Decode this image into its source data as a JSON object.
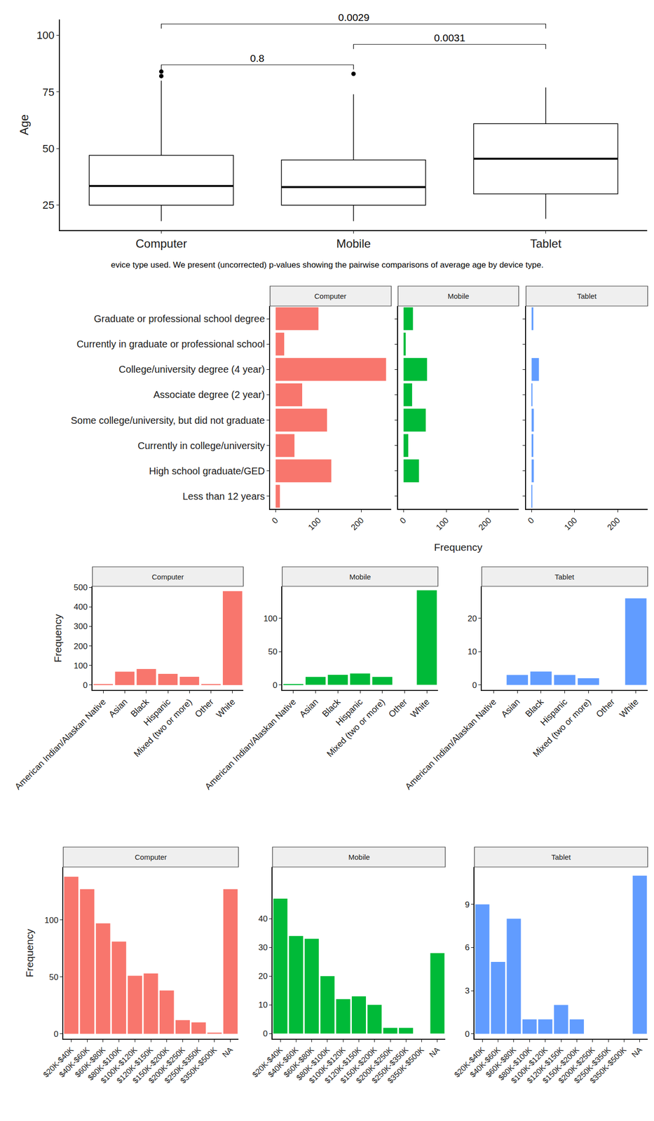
{
  "chart_data": [
    {
      "type": "box",
      "categories": [
        "Computer",
        "Mobile",
        "Tablet"
      ],
      "y_label": "Age",
      "ylim": [
        14,
        107
      ],
      "yticks": [
        25,
        50,
        75,
        100
      ],
      "boxes": [
        {
          "lower": 18,
          "q1": 25,
          "median": 33.5,
          "q3": 47,
          "upper": 80,
          "outliers": [
            82,
            84
          ]
        },
        {
          "lower": 18,
          "q1": 25,
          "median": 33,
          "q3": 45,
          "upper": 74,
          "outliers": [
            83
          ]
        },
        {
          "lower": 19,
          "q1": 30,
          "median": 45.5,
          "q3": 61,
          "upper": 77,
          "outliers": []
        }
      ],
      "comparisons": [
        {
          "groups": [
            "Computer",
            "Mobile"
          ],
          "p": 0.8
        },
        {
          "groups": [
            "Mobile",
            "Tablet"
          ],
          "p": 0.0031
        },
        {
          "groups": [
            "Computer",
            "Tablet"
          ],
          "p": 0.0029
        }
      ],
      "caption": "evice type used. We present (uncorrected) p-values showing the pairwise comparisons of average age by device type."
    },
    {
      "type": "bar",
      "orientation": "horizontal",
      "categories": [
        "Graduate or professional school degree",
        "Currently in graduate or professional school",
        "College/university degree (4 year)",
        "Associate degree (2 year)",
        "Some college/university, but did not graduate",
        "Currently in college/university",
        "High school graduate/GED",
        "Less than 12 years"
      ],
      "x_label": "Frequency",
      "xlim": [
        -13,
        270
      ],
      "xticks": [
        0,
        100,
        200
      ],
      "series": [
        {
          "name": "Computer",
          "color": "#F8766D",
          "values": [
            100,
            20,
            258,
            62,
            120,
            44,
            130,
            10
          ]
        },
        {
          "name": "Mobile",
          "color": "#00BA38",
          "values": [
            22,
            5,
            55,
            20,
            52,
            11,
            36,
            0
          ]
        },
        {
          "name": "Tablet",
          "color": "#619CFF",
          "values": [
            4,
            0,
            17,
            2,
            5,
            4,
            5,
            1
          ]
        }
      ]
    },
    {
      "type": "bar",
      "categories": [
        "American Indian/Alaskan Native",
        "Asian",
        "Black",
        "Hispanic",
        "Mixed (two or more)",
        "Other",
        "White"
      ],
      "y_label": "Frequency",
      "series": [
        {
          "name": "Computer",
          "color": "#F8766D",
          "values": [
            3,
            68,
            82,
            57,
            42,
            5,
            480
          ],
          "ylim": [
            -25,
            505
          ],
          "yticks": [
            0,
            100,
            200,
            300,
            400,
            500
          ]
        },
        {
          "name": "Mobile",
          "color": "#00BA38",
          "values": [
            1,
            12,
            15,
            17,
            12,
            0,
            142
          ],
          "ylim": [
            -7.6,
            148
          ],
          "yticks": [
            0,
            50,
            100
          ]
        },
        {
          "name": "Tablet",
          "color": "#619CFF",
          "values": [
            0,
            3,
            4,
            3,
            2,
            0,
            26
          ],
          "ylim": [
            -1.5,
            29.6
          ],
          "yticks": [
            0,
            10,
            20
          ]
        }
      ]
    },
    {
      "type": "bar",
      "categories": [
        "$20K-$40K",
        "$40K-$60K",
        "$60K-$80K",
        "$80K-$100K",
        "$100K-$120K",
        "$120K-$150K",
        "$150K-$200K",
        "$200K-$250K",
        "$250K-$350K",
        "$350K-$500K",
        "NA"
      ],
      "y_label": "Frequency",
      "series": [
        {
          "name": "Computer",
          "color": "#F8766D",
          "values": [
            138,
            127,
            97,
            81,
            51,
            53,
            38,
            12,
            10,
            1,
            127
          ],
          "ylim": [
            -4.4,
            146.5
          ],
          "yticks": [
            0,
            50,
            100
          ]
        },
        {
          "name": "Mobile",
          "color": "#00BA38",
          "values": [
            47,
            34,
            33,
            20,
            12,
            13,
            10,
            2,
            2,
            0,
            28
          ],
          "ylim": [
            -1.8,
            58
          ],
          "yticks": [
            0,
            10,
            20,
            30,
            40
          ]
        },
        {
          "name": "Tablet",
          "color": "#619CFF",
          "values": [
            9,
            5,
            8,
            1,
            1,
            2,
            1,
            0,
            0,
            0,
            11
          ],
          "ylim": [
            -0.35,
            11.6
          ],
          "yticks": [
            0,
            3,
            6,
            9
          ]
        }
      ]
    }
  ]
}
